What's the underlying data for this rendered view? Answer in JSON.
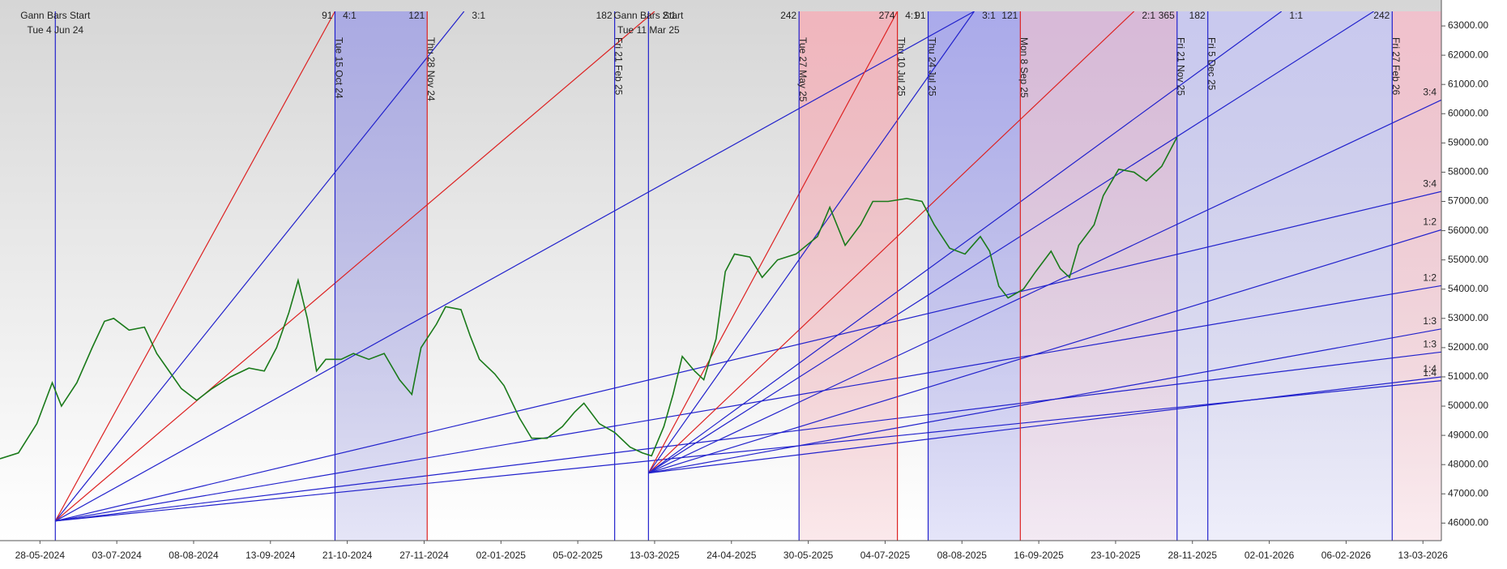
{
  "chart_data": {
    "type": "gann",
    "xlim": [
      -13,
      456
    ],
    "ylim": [
      45400,
      63500
    ],
    "xticks": [
      {
        "value": 0,
        "label": "28-05-2024"
      },
      {
        "value": 25,
        "label": "03-07-2024"
      },
      {
        "value": 50,
        "label": "08-08-2024"
      },
      {
        "value": 75,
        "label": "13-09-2024"
      },
      {
        "value": 100,
        "label": "21-10-2024"
      },
      {
        "value": 125,
        "label": "27-11-2024"
      },
      {
        "value": 150,
        "label": "02-01-2025"
      },
      {
        "value": 175,
        "label": "05-02-2025"
      },
      {
        "value": 200,
        "label": "13-03-2025"
      },
      {
        "value": 225,
        "label": "24-04-2025"
      },
      {
        "value": 250,
        "label": "30-05-2025"
      },
      {
        "value": 275,
        "label": "04-07-2025"
      },
      {
        "value": 300,
        "label": "08-08-2025"
      },
      {
        "value": 325,
        "label": "16-09-2025"
      },
      {
        "value": 350,
        "label": "23-10-2025"
      },
      {
        "value": 375,
        "label": "28-11-2025"
      },
      {
        "value": 400,
        "label": "02-01-2026"
      },
      {
        "value": 425,
        "label": "06-02-2026"
      },
      {
        "value": 450,
        "label": "13-03-2026"
      }
    ],
    "yticks": [
      {
        "value": 46000,
        "label": "46000.00"
      },
      {
        "value": 47000,
        "label": "47000.00"
      },
      {
        "value": 48000,
        "label": "48000.00"
      },
      {
        "value": 49000,
        "label": "49000.00"
      },
      {
        "value": 50000,
        "label": "50000.00"
      },
      {
        "value": 51000,
        "label": "51000.00"
      },
      {
        "value": 52000,
        "label": "52000.00"
      },
      {
        "value": 53000,
        "label": "53000.00"
      },
      {
        "value": 54000,
        "label": "54000.00"
      },
      {
        "value": 55000,
        "label": "55000.00"
      },
      {
        "value": 56000,
        "label": "56000.00"
      },
      {
        "value": 57000,
        "label": "57000.00"
      },
      {
        "value": 58000,
        "label": "58000.00"
      },
      {
        "value": 59000,
        "label": "59000.00"
      },
      {
        "value": 60000,
        "label": "60000.00"
      },
      {
        "value": 61000,
        "label": "61000.00"
      },
      {
        "value": 62000,
        "label": "62000.00"
      },
      {
        "value": 63000,
        "label": "63000.00"
      }
    ],
    "x": [
      -13,
      -7,
      -1,
      4,
      7,
      12,
      17,
      21,
      24,
      29,
      34,
      38,
      42,
      46,
      51,
      56,
      62,
      68,
      73,
      77,
      81,
      84,
      87,
      90,
      93,
      98,
      102,
      107,
      112,
      117,
      121,
      124,
      129,
      132,
      137,
      140,
      143,
      148,
      151,
      156,
      160,
      165,
      170,
      174,
      177,
      182,
      187,
      192,
      196,
      199,
      203,
      206,
      209,
      213,
      216,
      220,
      223,
      226,
      231,
      235,
      240,
      246,
      253,
      257,
      262,
      267,
      271,
      276,
      282,
      287,
      291,
      296,
      301,
      306,
      309,
      312,
      315,
      320,
      324,
      329,
      332,
      335,
      338,
      343,
      346,
      351,
      356,
      360,
      365,
      370
    ],
    "series": [
      {
        "color": "#1a7a1a",
        "values": [
          48200,
          48400,
          49400,
          50800,
          50000,
          50800,
          52000,
          52900,
          53000,
          52600,
          52700,
          51800,
          51200,
          50600,
          50200,
          50600,
          51000,
          51300,
          51200,
          52000,
          53200,
          54300,
          53000,
          51200,
          51600,
          51600,
          51800,
          51600,
          51800,
          50900,
          50400,
          52000,
          52800,
          53400,
          53300,
          52400,
          51600,
          51100,
          50700,
          49600,
          48900,
          48900,
          49300,
          49800,
          50100,
          49400,
          49100,
          48600,
          48400,
          48300,
          49300,
          50400,
          51700,
          51200,
          50900,
          52300,
          54600,
          55200,
          55100,
          54400,
          55000,
          55200,
          55800,
          56800,
          55500,
          56200,
          57000,
          57000,
          57100,
          57000,
          56200,
          55400,
          55200,
          55800,
          55300,
          54100,
          53700,
          54000,
          54600,
          55300,
          54700,
          54400,
          55500,
          56200,
          57200,
          58100,
          58000,
          57700,
          58200,
          59200
        ]
      }
    ],
    "bands": [
      {
        "x0": 96,
        "x1": 126,
        "color": "#a8a8e4"
      },
      {
        "x0": 247,
        "x1": 279,
        "color": "#f2b4bc"
      },
      {
        "x0": 289,
        "x1": 319,
        "color": "#a8a8ec"
      },
      {
        "x0": 319,
        "x1": 370,
        "color": "#d8b8d8"
      },
      {
        "x0": 370,
        "x1": 440,
        "color": "#c8c8f0"
      },
      {
        "x0": 440,
        "x1": 456,
        "color": "#f2c0cc"
      }
    ],
    "vlines": [
      {
        "x": 5,
        "color": "#2222cc"
      },
      {
        "x": 96,
        "color": "#2222cc",
        "label": "Tue 15 Oct 24",
        "count": "91"
      },
      {
        "x": 126,
        "color": "#dd2222",
        "label": "Thu 28 Nov 24",
        "count": "121"
      },
      {
        "x": 187,
        "color": "#2222cc",
        "label": "Fri 21 Feb 25",
        "count": "182"
      },
      {
        "x": 198,
        "color": "#2222cc"
      },
      {
        "x": 247,
        "color": "#2222cc",
        "label": "Tue 27 May 25",
        "count": "242"
      },
      {
        "x": 279,
        "color": "#dd2222",
        "label": "Thu 10 Jul 25",
        "count": "274"
      },
      {
        "x": 289,
        "color": "#2222cc",
        "label": "Thu 24 Jul 25",
        "count": "91"
      },
      {
        "x": 319,
        "color": "#dd2222",
        "label": "Mon 8 Sep 25",
        "count": "121"
      },
      {
        "x": 370,
        "color": "#2222cc",
        "label": "Fri 21 Nov 25",
        "count": "365"
      },
      {
        "x": 380,
        "color": "#2222cc",
        "label": "Fri 5 Dec 25",
        "count": "182"
      },
      {
        "x": 440,
        "color": "#2222cc",
        "label": "Fri 27 Feb 26",
        "count": "242"
      }
    ],
    "fans": [
      {
        "title": "Gann Bars Start",
        "date": "Tue 4 Jun 24",
        "origin": {
          "x": 5,
          "y": 46070
        },
        "ends": [
          {
            "x": 96,
            "y": 63500,
            "color": "#dd2222",
            "label": "4:1"
          },
          {
            "x": 138,
            "y": 63500,
            "color": "#2222cc",
            "label": "3:1"
          },
          {
            "x": 200,
            "y": 63500,
            "color": "#dd2222",
            "label": "2:1"
          },
          {
            "x": 304,
            "y": 63500,
            "color": "#2222cc"
          },
          {
            "x": 456,
            "y": 57340,
            "color": "#2222cc",
            "label": "3:4"
          },
          {
            "x": 456,
            "y": 54120,
            "color": "#2222cc",
            "label": "1:2"
          },
          {
            "x": 456,
            "y": 51850,
            "color": "#2222cc",
            "label": "1:3"
          },
          {
            "x": 456,
            "y": 50870,
            "color": "#2222cc",
            "label": "1:4"
          }
        ]
      },
      {
        "title": "Gann Bars Start",
        "date": "Tue 11 Mar 25",
        "origin": {
          "x": 198,
          "y": 47710
        },
        "ends": [
          {
            "x": 279,
            "y": 63500,
            "color": "#dd2222",
            "label": "4:1"
          },
          {
            "x": 304,
            "y": 63500,
            "color": "#2222cc",
            "label": "3:1"
          },
          {
            "x": 356,
            "y": 63500,
            "color": "#dd2222",
            "label": "2:1"
          },
          {
            "x": 404,
            "y": 63500,
            "color": "#2222cc",
            "label": "1:1"
          },
          {
            "x": 434,
            "y": 63500,
            "color": "#2222cc"
          },
          {
            "x": 456,
            "y": 60470,
            "color": "#2222cc",
            "label": "3:4"
          },
          {
            "x": 456,
            "y": 56030,
            "color": "#2222cc",
            "label": "1:2"
          },
          {
            "x": 456,
            "y": 52640,
            "color": "#2222cc",
            "label": "1:3"
          },
          {
            "x": 456,
            "y": 51000,
            "color": "#2222cc",
            "label": "1:4"
          }
        ]
      }
    ]
  }
}
